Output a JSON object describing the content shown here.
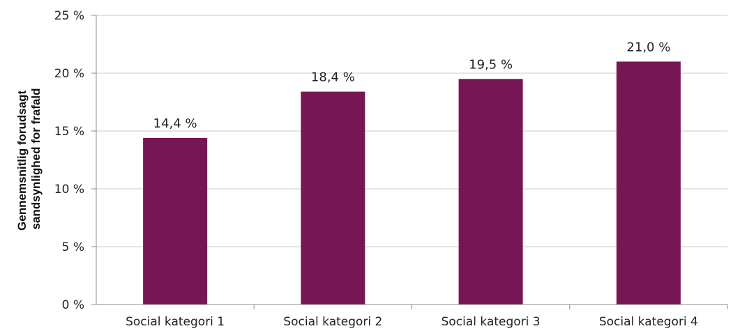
{
  "chart_data": {
    "type": "bar",
    "categories": [
      "Social kategori 1",
      "Social kategori 2",
      "Social kategori 3",
      "Social kategori 4"
    ],
    "values": [
      14.4,
      18.4,
      19.5,
      21.0
    ],
    "data_labels": [
      "14,4 %",
      "18,4 %",
      "19,5 %",
      "21,0 %"
    ],
    "title": "",
    "xlabel": "",
    "ylabel_lines": [
      "Gennemsnitlig forudsagt",
      "sandsynlighed for frafald"
    ],
    "ylim": [
      0,
      25
    ],
    "yticks": [
      0,
      5,
      10,
      15,
      20,
      25
    ],
    "ytick_labels": [
      "0 %",
      "5 %",
      "10 %",
      "15 %",
      "20 %",
      "25 %"
    ],
    "grid": true,
    "legend": "none",
    "colors": {
      "bar": "#771655",
      "grid": "#c8c8c8",
      "axis": "#8c8c8c"
    }
  }
}
